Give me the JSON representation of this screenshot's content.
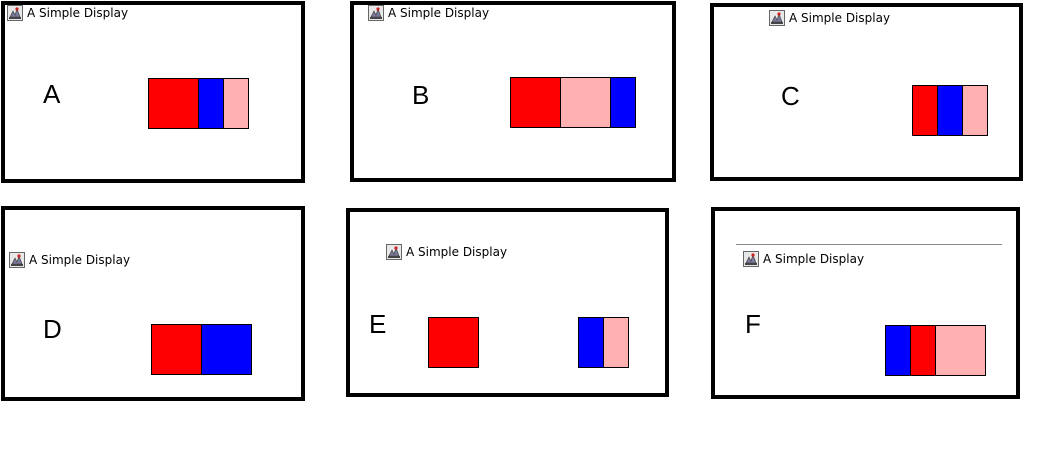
{
  "colors": {
    "red": "#ff0000",
    "blue": "#0000ff",
    "pink": "#ffb0b0"
  },
  "icon_name": "java-app-icon",
  "panels": [
    {
      "title": "A Simple Display",
      "letter": "A",
      "rects": [
        "red",
        "blue",
        "pink"
      ]
    },
    {
      "title": "A Simple Display",
      "letter": "B",
      "rects": [
        "red",
        "pink",
        "blue"
      ]
    },
    {
      "title": "A Simple Display",
      "letter": "C",
      "rects": [
        "red",
        "blue",
        "pink"
      ]
    },
    {
      "title": "A Simple Display",
      "letter": "D",
      "rects": [
        "red",
        "blue"
      ]
    },
    {
      "title": "A Simple Display",
      "letter": "E",
      "rects": [
        "red",
        "blue",
        "pink"
      ]
    },
    {
      "title": "A Simple Display",
      "letter": "F",
      "rects": [
        "blue",
        "red",
        "pink"
      ]
    }
  ]
}
